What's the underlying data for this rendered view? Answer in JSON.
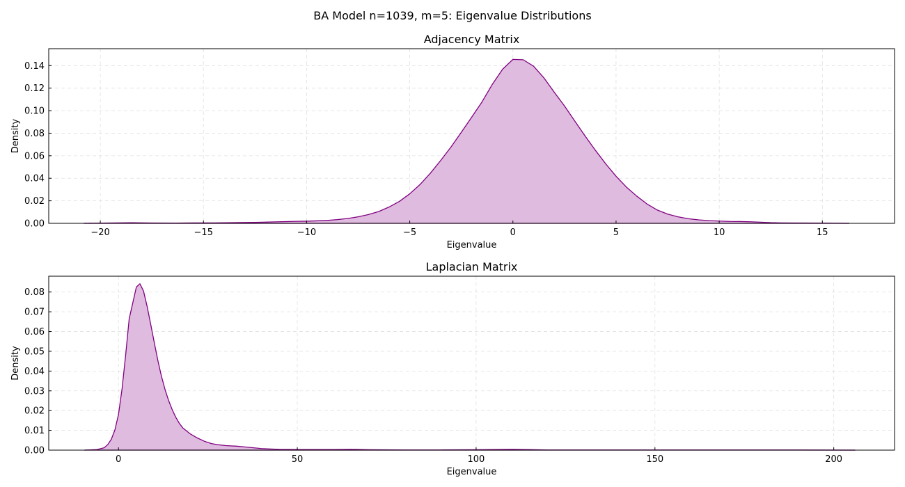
{
  "figure": {
    "suptitle": "BA Model n=1039, m=5: Eigenvalue Distributions",
    "line_color": "#800080",
    "fill_color": "#dfbcdf"
  },
  "chart_data": [
    {
      "type": "area",
      "title": "Adjacency Matrix",
      "xlabel": "Eigenvalue",
      "ylabel": "Density",
      "xlim": [
        -22.5,
        18.5
      ],
      "ylim": [
        0,
        0.155
      ],
      "xticks": [
        -20,
        -15,
        -10,
        -5,
        0,
        5,
        10,
        15
      ],
      "xtick_labels": [
        "−20",
        "−15",
        "−10",
        "−5",
        "0",
        "5",
        "10",
        "15"
      ],
      "yticks": [
        0.0,
        0.02,
        0.04,
        0.06,
        0.08,
        0.1,
        0.12,
        0.14
      ],
      "ytick_labels": [
        "0.00",
        "0.02",
        "0.04",
        "0.06",
        "0.08",
        "0.10",
        "0.12",
        "0.14"
      ],
      "grid": true,
      "x": [
        -20.8,
        -19.5,
        -18.5,
        -17.5,
        -16.5,
        -15.5,
        -14.5,
        -13.5,
        -12.5,
        -11.5,
        -10.5,
        -10,
        -9.5,
        -9,
        -8.5,
        -8,
        -7.5,
        -7,
        -6.5,
        -6,
        -5.5,
        -5,
        -4.5,
        -4,
        -3.5,
        -3,
        -2.5,
        -2,
        -1.5,
        -1,
        -0.5,
        0,
        0.5,
        1,
        1.5,
        2,
        2.5,
        3,
        3.5,
        4,
        4.5,
        5,
        5.5,
        6,
        6.5,
        7,
        7.5,
        8,
        8.5,
        9,
        9.5,
        10,
        10.5,
        11,
        11.5,
        12,
        12.5,
        13,
        14,
        15,
        16.3
      ],
      "y": [
        0.0,
        0.0003,
        0.0005,
        0.0003,
        0.0002,
        0.0004,
        0.0004,
        0.0006,
        0.0008,
        0.0013,
        0.0018,
        0.0019,
        0.0022,
        0.0026,
        0.0033,
        0.0043,
        0.0058,
        0.0078,
        0.0105,
        0.0145,
        0.0195,
        0.0262,
        0.0345,
        0.0445,
        0.0558,
        0.0678,
        0.0808,
        0.0942,
        0.1077,
        0.1233,
        0.1368,
        0.1455,
        0.1452,
        0.1395,
        0.1292,
        0.1165,
        0.1042,
        0.0908,
        0.0775,
        0.0648,
        0.0528,
        0.0418,
        0.0322,
        0.0242,
        0.0172,
        0.0118,
        0.0082,
        0.0058,
        0.0041,
        0.0031,
        0.0024,
        0.002,
        0.0017,
        0.0016,
        0.0014,
        0.001,
        0.0006,
        0.0004,
        0.0003,
        0.0002,
        0.0
      ]
    },
    {
      "type": "area",
      "title": "Laplacian Matrix",
      "xlabel": "Eigenvalue",
      "ylabel": "Density",
      "xlim": [
        -19.5,
        217
      ],
      "ylim": [
        0,
        0.088
      ],
      "xticks": [
        0,
        50,
        100,
        150,
        200
      ],
      "xtick_labels": [
        "0",
        "50",
        "100",
        "150",
        "200"
      ],
      "yticks": [
        0.0,
        0.01,
        0.02,
        0.03,
        0.04,
        0.05,
        0.06,
        0.07,
        0.08
      ],
      "ytick_labels": [
        "0.00",
        "0.01",
        "0.02",
        "0.03",
        "0.04",
        "0.05",
        "0.06",
        "0.07",
        "0.08"
      ],
      "grid": true,
      "x": [
        -9.5,
        -6,
        -4,
        -3,
        -2,
        -1,
        0,
        1,
        2,
        3,
        4,
        5,
        6,
        7,
        8,
        9,
        10,
        11,
        12,
        13,
        14,
        15,
        16,
        17,
        18,
        20,
        22,
        24,
        26,
        28,
        30,
        33,
        36,
        40,
        45,
        50,
        60,
        65,
        70,
        80,
        90,
        100,
        110,
        120,
        150,
        180,
        206
      ],
      "y": [
        0.0,
        0.0003,
        0.0012,
        0.0028,
        0.0055,
        0.0102,
        0.018,
        0.031,
        0.048,
        0.0665,
        0.0745,
        0.0825,
        0.0842,
        0.0805,
        0.0728,
        0.0638,
        0.0545,
        0.0455,
        0.0375,
        0.0308,
        0.0252,
        0.0206,
        0.0167,
        0.0136,
        0.0112,
        0.0083,
        0.0062,
        0.0045,
        0.0033,
        0.0027,
        0.0023,
        0.002,
        0.0015,
        0.0008,
        0.0004,
        0.0003,
        0.0003,
        0.0004,
        0.0002,
        0.0001,
        0.0001,
        0.0002,
        0.0004,
        0.0001,
        0.0001,
        0.0001,
        0.0
      ]
    }
  ]
}
